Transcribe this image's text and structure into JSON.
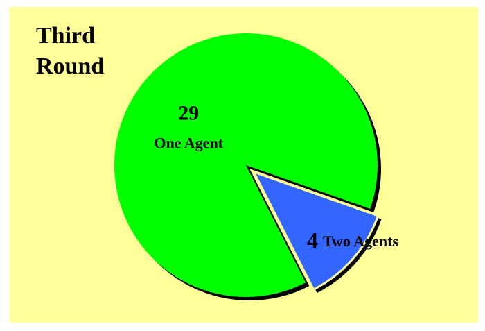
{
  "chart_data": {
    "type": "pie",
    "title": "Third Round",
    "categories": [
      "One Agent",
      "Two Agents"
    ],
    "values": [
      29,
      4
    ],
    "colors": [
      "#00ff00",
      "#3366ff"
    ]
  }
}
